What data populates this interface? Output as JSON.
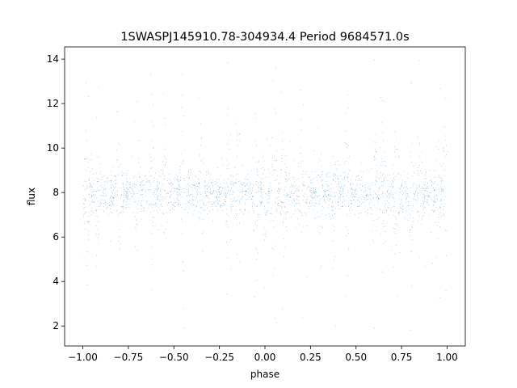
{
  "chart_data": {
    "type": "scatter",
    "title": "1SWASPJ145910.78-304934.4 Period 9684571.0s",
    "xlabel": "phase",
    "ylabel": "flux",
    "xlim": [
      -1.1,
      1.1
    ],
    "ylim": [
      1.1,
      14.55
    ],
    "xticks": [
      -1.0,
      -0.75,
      -0.5,
      -0.25,
      0.0,
      0.25,
      0.5,
      0.75,
      1.0
    ],
    "xtick_labels": [
      "−1.00",
      "−0.75",
      "−0.50",
      "−0.25",
      "0.00",
      "0.25",
      "0.50",
      "0.75",
      "1.00"
    ],
    "yticks": [
      2,
      4,
      6,
      8,
      10,
      12,
      14
    ],
    "ytick_labels": [
      "2",
      "4",
      "6",
      "8",
      "10",
      "12",
      "14"
    ],
    "grid": false,
    "legend": "none",
    "marker_color": "#1f77b4",
    "series": [
      {
        "x_range": [
          -1.0,
          1.0
        ],
        "median_flux": 8.0,
        "core_flux_range": [
          7.0,
          9.0
        ],
        "flux_range": [
          1.7,
          14.0
        ],
        "high_scatter_phases": [
          -0.98,
          -0.92,
          -0.8,
          -0.7,
          -0.62,
          -0.55,
          -0.45,
          -0.35,
          -0.2,
          -0.15,
          -0.05,
          0.0,
          0.05,
          0.1,
          0.2,
          0.3,
          0.38,
          0.45,
          0.6,
          0.65,
          0.72,
          0.8,
          0.85,
          0.95,
          0.99
        ]
      }
    ]
  }
}
